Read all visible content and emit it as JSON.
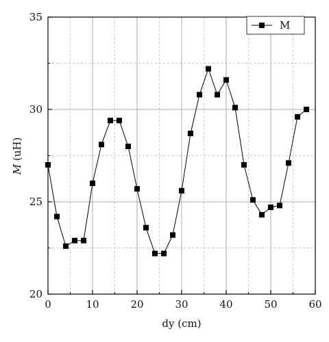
{
  "chart_data": {
    "type": "line",
    "xlabel": "dy (cm)",
    "ylabel_italic": "M",
    "ylabel_rest": " (uH)",
    "xlim": [
      0,
      60
    ],
    "ylim": [
      20,
      35
    ],
    "x_ticks": [
      "0",
      "10",
      "20",
      "30",
      "40",
      "50",
      "60"
    ],
    "y_ticks": [
      "20",
      "25",
      "30",
      "35"
    ],
    "grid": true,
    "legend_position": "top-right",
    "series": [
      {
        "name": "M",
        "marker": "square",
        "color": "#000000",
        "x": [
          0,
          2,
          4,
          6,
          8,
          10,
          12,
          14,
          16,
          18,
          20,
          22,
          24,
          26,
          28,
          30,
          32,
          34,
          36,
          38,
          40,
          42,
          44,
          46,
          48,
          50,
          52,
          54,
          56,
          58
        ],
        "y": [
          27.0,
          24.2,
          22.6,
          22.9,
          22.9,
          26.0,
          28.1,
          29.4,
          29.4,
          28.0,
          25.7,
          23.6,
          22.2,
          22.2,
          23.2,
          25.6,
          28.7,
          30.8,
          32.2,
          30.8,
          31.6,
          30.1,
          27.0,
          25.1,
          24.3,
          24.7,
          24.8,
          27.1,
          29.6,
          30.0
        ]
      }
    ]
  }
}
